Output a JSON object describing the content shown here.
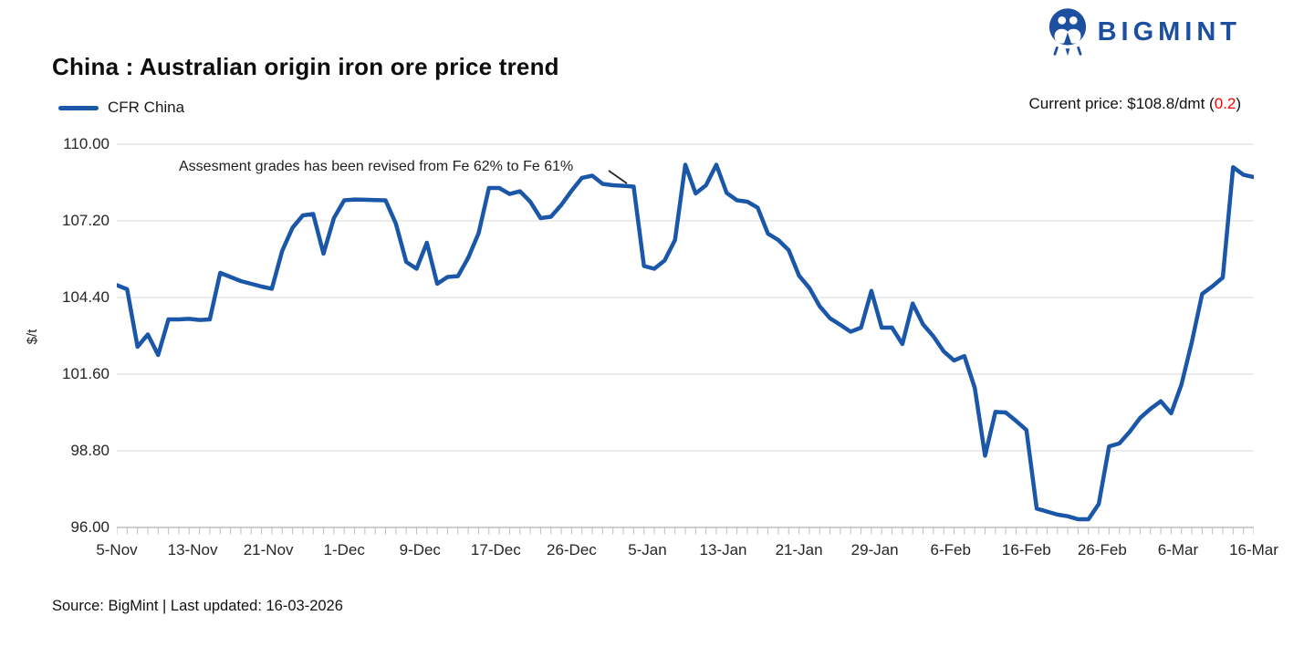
{
  "brand": {
    "name": "BIGMINT"
  },
  "title": "China : Australian origin iron ore price trend",
  "legend": {
    "series_label": "CFR China"
  },
  "current_price": {
    "prefix": "Current price: $108.8/dmt ",
    "open_paren": "(",
    "change": "0.2",
    "close_paren": ")"
  },
  "annotation": {
    "text": "Assesment grades has been revised from Fe 62% to Fe 61%"
  },
  "y_axis_title": "$/t",
  "footer": {
    "text": "Source: BigMint | Last updated: 16-03-2026"
  },
  "colors": {
    "line_blue": "#1b57a8",
    "logo_blue": "#1d4fa1",
    "change_red": "#ff0000",
    "gridline_gray": "#d9d9d9",
    "axis_gray": "#bdbdbd",
    "text_dark": "#262626"
  },
  "chart_data": {
    "type": "line",
    "title": "China : Australian origin iron ore price trend",
    "xlabel": "",
    "ylabel": "$/t",
    "ylim": [
      96.0,
      110.0
    ],
    "y_tick_interval": 2.8,
    "y_tick_labels": [
      "110.00",
      "107.20",
      "104.40",
      "101.60",
      "98.80",
      "96.00"
    ],
    "x_tick_labels": [
      "5-Nov",
      "13-Nov",
      "21-Nov",
      "1-Dec",
      "9-Dec",
      "17-Dec",
      "26-Dec",
      "5-Jan",
      "13-Jan",
      "21-Jan",
      "29-Jan",
      "6-Feb",
      "16-Feb",
      "26-Feb",
      "6-Mar",
      "16-Mar"
    ],
    "grid": "horizontal",
    "legend_position": "top-left",
    "current_price_dmt": 108.8,
    "daily_change": 0.2,
    "annotations": [
      {
        "text": "Assesment grades has been revised from Fe 62% to Fe 61%",
        "points_to": "plateau before early-January price drop"
      }
    ],
    "series": [
      {
        "name": "CFR China",
        "color": "#1b57a8",
        "values": [
          104.85,
          104.7,
          102.6,
          103.05,
          102.3,
          103.6,
          103.6,
          103.62,
          103.58,
          103.6,
          105.3,
          105.15,
          105.0,
          104.9,
          104.8,
          104.72,
          106.1,
          106.95,
          107.4,
          107.45,
          106.0,
          107.3,
          107.95,
          107.98,
          107.97,
          107.96,
          107.95,
          107.1,
          105.7,
          105.45,
          106.4,
          104.9,
          105.15,
          105.18,
          105.85,
          106.75,
          108.4,
          108.4,
          108.18,
          108.28,
          107.9,
          107.3,
          107.35,
          107.78,
          108.3,
          108.77,
          108.85,
          108.55,
          108.5,
          108.48,
          108.45,
          105.55,
          105.45,
          105.75,
          106.5,
          109.25,
          108.2,
          108.5,
          109.25,
          108.22,
          107.95,
          107.9,
          107.68,
          106.73,
          106.5,
          106.13,
          105.2,
          104.75,
          104.08,
          103.64,
          103.4,
          103.15,
          103.3,
          104.64,
          103.3,
          103.3,
          102.7,
          104.18,
          103.42,
          102.98,
          102.43,
          102.1,
          102.26,
          101.1,
          98.62,
          100.22,
          100.2,
          99.89,
          99.56,
          96.69,
          96.58,
          96.47,
          96.41,
          96.3,
          96.3,
          96.86,
          98.96,
          99.07,
          99.5,
          100.0,
          100.33,
          100.61,
          100.17,
          101.22,
          102.76,
          104.53,
          104.81,
          105.13,
          109.16,
          108.88,
          108.8
        ]
      }
    ]
  }
}
